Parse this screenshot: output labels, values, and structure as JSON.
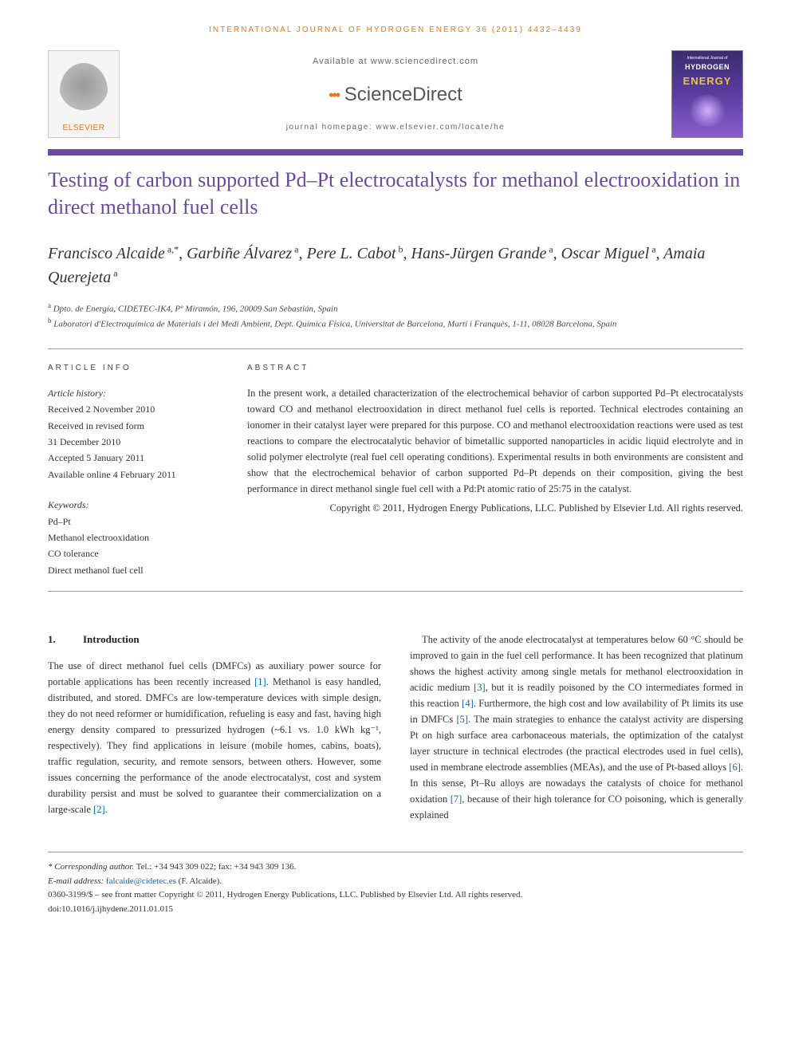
{
  "running_header": "INTERNATIONAL JOURNAL OF HYDROGEN ENERGY 36 (2011) 4432–4439",
  "masthead": {
    "elsevier": "ELSEVIER",
    "available_at": "Available at www.sciencedirect.com",
    "sciencedirect": "ScienceDirect",
    "homepage_label": "journal homepage: ",
    "homepage_url": "www.elsevier.com/locate/he",
    "cover_top": "International Journal of",
    "cover_hydrogen": "HYDROGEN",
    "cover_energy": "ENERGY"
  },
  "title": "Testing of carbon supported Pd–Pt electrocatalysts for methanol electrooxidation in direct methanol fuel cells",
  "authors_html": "Francisco Alcaide<sup> a,*</sup>, Garbiñe Álvarez<sup> a</sup>, Pere L. Cabot<sup> b</sup>, Hans-Jürgen Grande<sup> a</sup>, Oscar Miguel<sup> a</sup>, Amaia Querejeta<sup> a</sup>",
  "affiliations": {
    "a": "Dpto. de Energía, CIDETEC-IK4, Pº Miramón, 196, 20009 San Sebastián, Spain",
    "b": "Laboratori d'Electroquímica de Materials i del Medi Ambient, Dept. Química Física, Universitat de Barcelona, Martí i Franquès, 1-11, 08028 Barcelona, Spain"
  },
  "info": {
    "article_info_label": "ARTICLE INFO",
    "abstract_label": "ABSTRACT",
    "history_head": "Article history:",
    "history": [
      "Received 2 November 2010",
      "Received in revised form",
      "31 December 2010",
      "Accepted 5 January 2011",
      "Available online 4 February 2011"
    ],
    "keywords_head": "Keywords:",
    "keywords": [
      "Pd–Pt",
      "Methanol electrooxidation",
      "CO tolerance",
      "Direct methanol fuel cell"
    ]
  },
  "abstract": "In the present work, a detailed characterization of the electrochemical behavior of carbon supported Pd–Pt electrocatalysts toward CO and methanol electrooxidation in direct methanol fuel cells is reported. Technical electrodes containing an ionomer in their catalyst layer were prepared for this purpose. CO and methanol electrooxidation reactions were used as test reactions to compare the electrocatalytic behavior of bimetallic supported nanoparticles in acidic liquid electrolyte and in solid polymer electrolyte (real fuel cell operating conditions). Experimental results in both environments are consistent and show that the electrochemical behavior of carbon supported Pd–Pt depends on their composition, giving the best performance in direct methanol single fuel cell with a Pd:Pt atomic ratio of 25:75 in the catalyst.",
  "abstract_copyright": "Copyright © 2011, Hydrogen Energy Publications, LLC. Published by Elsevier Ltd. All rights reserved.",
  "section1": {
    "num": "1.",
    "title": "Introduction"
  },
  "body": {
    "p1_pre": "The use of direct methanol fuel cells (DMFCs) as auxiliary power source for portable applications has been recently increased ",
    "p1_ref1": "[1]",
    "p1_mid": ". Methanol is easy handled, distributed, and stored. DMFCs are low-temperature devices with simple design, they do not need reformer or humidification, refueling is easy and fast, having high energy density compared to pressurized hydrogen (~6.1 vs. 1.0 kWh kg⁻¹, respectively). They find applications in leisure (mobile homes, cabins, boats), traffic regulation, security, and remote sensors, between others. However, some issues concerning the performance of the anode electrocatalyst, cost and system durability persist and must be solved to guarantee their commercialization on a large-scale ",
    "p1_ref2": "[2]",
    "p1_post": ".",
    "p2_a": "The activity of the anode electrocatalyst at temperatures below 60 °C should be improved to gain in the fuel cell performance. It has been recognized that platinum shows the highest activity among single metals for methanol electrooxidation in acidic medium ",
    "p2_ref3": "[3]",
    "p2_b": ", but it is readily poisoned by the CO intermediates formed in this reaction ",
    "p2_ref4": "[4]",
    "p2_c": ". Furthermore, the high cost and low availability of Pt limits its use in DMFCs ",
    "p2_ref5": "[5]",
    "p2_d": ". The main strategies to enhance the catalyst activity are dispersing Pt on high surface area carbonaceous materials, the optimization of the catalyst layer structure in technical electrodes (the practical electrodes used in fuel cells), used in membrane electrode assemblies (MEAs), and the use of Pt-based alloys ",
    "p2_ref6": "[6]",
    "p2_e": ". In this sense, Pt–Ru alloys are nowadays the catalysts of choice for methanol oxidation ",
    "p2_ref7": "[7]",
    "p2_f": ", because of their high tolerance for CO poisoning, which is generally explained"
  },
  "footer": {
    "corr_label": "* Corresponding author.",
    "corr_tel": " Tel.: +34 943 309 022; fax: +34 943 309 136.",
    "email_label": "E-mail address: ",
    "email": "falcaide@cidetec.es",
    "email_person": " (F. Alcaide).",
    "front_matter": "0360-3199/$ – see front matter Copyright © 2011, Hydrogen Energy Publications, LLC. Published by Elsevier Ltd. All rights reserved.",
    "doi": "doi:10.1016/j.ijhydene.2011.01.015"
  },
  "colors": {
    "accent_orange": "#e67817",
    "accent_purple": "#6b4a9e",
    "link_blue": "#0066cc"
  }
}
